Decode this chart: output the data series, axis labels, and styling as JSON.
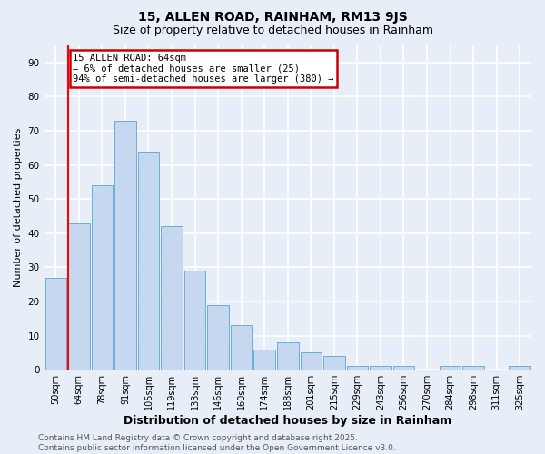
{
  "title": "15, ALLEN ROAD, RAINHAM, RM13 9JS",
  "subtitle": "Size of property relative to detached houses in Rainham",
  "xlabel": "Distribution of detached houses by size in Rainham",
  "ylabel": "Number of detached properties",
  "categories": [
    "50sqm",
    "64sqm",
    "78sqm",
    "91sqm",
    "105sqm",
    "119sqm",
    "133sqm",
    "146sqm",
    "160sqm",
    "174sqm",
    "188sqm",
    "201sqm",
    "215sqm",
    "229sqm",
    "243sqm",
    "256sqm",
    "270sqm",
    "284sqm",
    "298sqm",
    "311sqm",
    "325sqm"
  ],
  "values": [
    27,
    43,
    54,
    73,
    64,
    42,
    29,
    19,
    13,
    6,
    8,
    5,
    4,
    1,
    1,
    1,
    0,
    1,
    1,
    0,
    1
  ],
  "bar_color": "#c5d8f0",
  "bar_edge_color": "#6baed6",
  "red_line_index": 1,
  "annotation_text": "15 ALLEN ROAD: 64sqm\n← 6% of detached houses are smaller (25)\n94% of semi-detached houses are larger (380) →",
  "annotation_box_facecolor": "#ffffff",
  "annotation_box_edgecolor": "#cc0000",
  "footer_line1": "Contains HM Land Registry data © Crown copyright and database right 2025.",
  "footer_line2": "Contains public sector information licensed under the Open Government Licence v3.0.",
  "ylim_max": 95,
  "yticks": [
    0,
    10,
    20,
    30,
    40,
    50,
    60,
    70,
    80,
    90
  ],
  "background_color": "#e8eef8",
  "grid_color": "#ffffff",
  "title_fontsize": 10,
  "subtitle_fontsize": 9,
  "xlabel_fontsize": 9,
  "ylabel_fontsize": 8,
  "tick_fontsize": 7,
  "annotation_fontsize": 7.5,
  "footer_fontsize": 6.5
}
